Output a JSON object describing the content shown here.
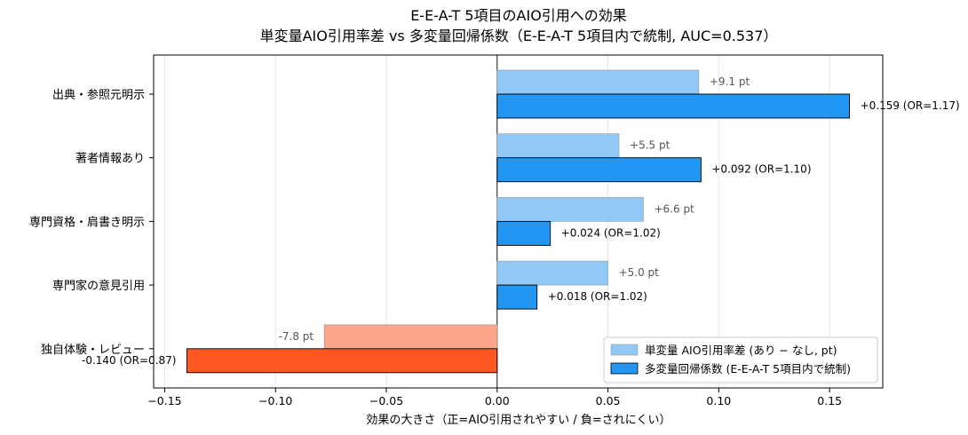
{
  "chart_data": {
    "type": "bar",
    "orientation": "horizontal",
    "title": "E-E-A-T 5項目のAIO引用への効果",
    "subtitle": "単変量AIO引用率差 vs 多変量回帰係数（E-E-A-T 5項目内で統制, AUC=0.537）",
    "xlabel": "効果の大きさ（正=AIO引用されやすい / 負=されにくい）",
    "xlim": [
      -0.155,
      0.174
    ],
    "xticks": [
      -0.15,
      -0.1,
      -0.05,
      0.0,
      0.05,
      0.1,
      0.15
    ],
    "xtick_labels": [
      "−0.15",
      "−0.10",
      "−0.05",
      "0.00",
      "0.05",
      "0.10",
      "0.15"
    ],
    "grid": "vertical",
    "legend_position": "lower-right",
    "categories": [
      "出典・参照元明示",
      "著者情報あり",
      "専門資格・肩書き明示",
      "専門家の意見引用",
      "独自体験・レビュー"
    ],
    "series": [
      {
        "name": "単変量 AIO引用率差 (あり − なし, pt)",
        "values": [
          0.091,
          0.055,
          0.066,
          0.05,
          -0.078
        ],
        "labels": [
          "+9.1 pt",
          "+5.5 pt",
          "+6.6 pt",
          "+5.0 pt",
          "-7.8 pt"
        ],
        "color_positive": "#90c8f6",
        "color_negative": "#fca58a"
      },
      {
        "name": "多変量回帰係数 (E-E-A-T 5項目内で統制)",
        "values": [
          0.159,
          0.092,
          0.024,
          0.018,
          -0.14
        ],
        "labels": [
          "+0.159  (OR=1.17)",
          "+0.092  (OR=1.10)",
          "+0.024  (OR=1.02)",
          "+0.018  (OR=1.02)",
          "-0.140  (OR=0.87)"
        ],
        "color_positive": "#2196f3",
        "color_negative": "#ff5722"
      }
    ]
  }
}
